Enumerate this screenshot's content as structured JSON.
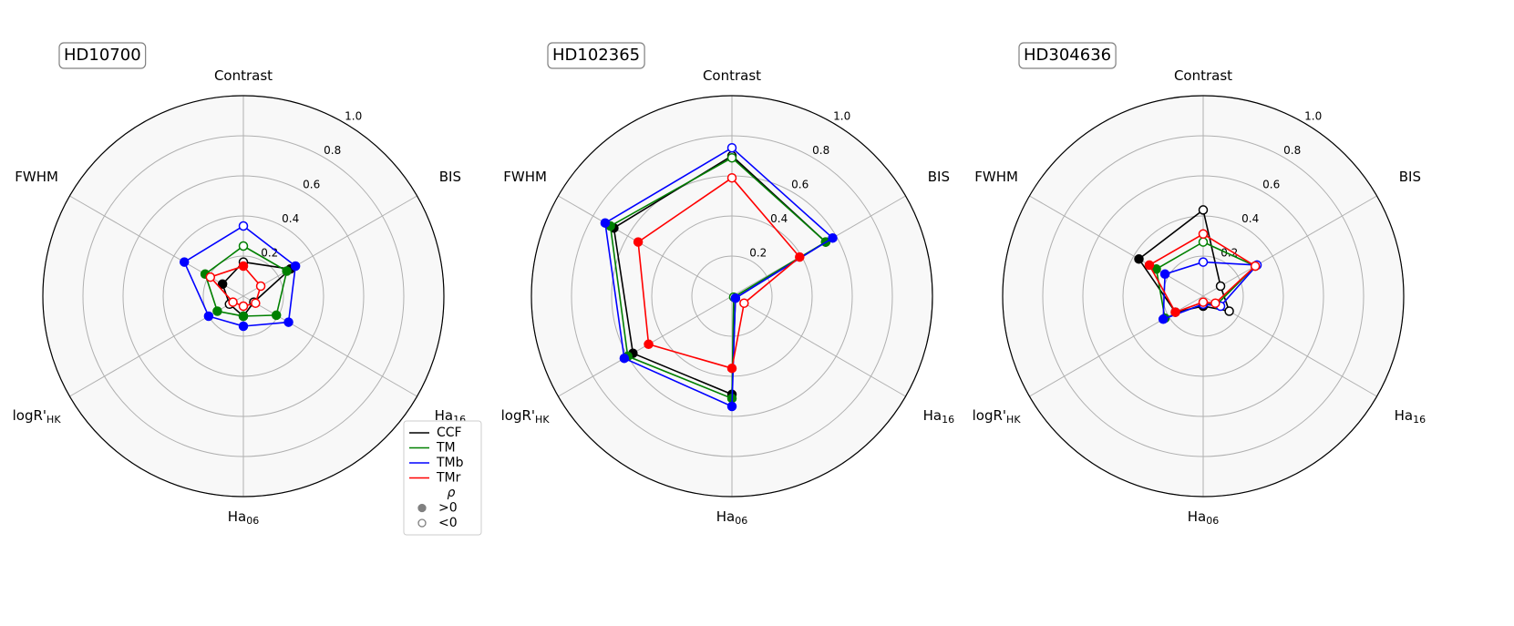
{
  "chart_data": [
    {
      "type": "radar",
      "title": "HD10700",
      "axes": [
        {
          "label": "Contrast"
        },
        {
          "label": "BIS"
        },
        {
          "label": "Ha",
          "sub": "16"
        },
        {
          "label": "Ha",
          "sub": "06"
        },
        {
          "label": "logR'",
          "sub": "HK"
        },
        {
          "label": "FWHM"
        }
      ],
      "rlim": [
        0,
        1.0
      ],
      "rticks": [
        0.2,
        0.4,
        0.6,
        0.8,
        {
          "value": 1.0,
          "label": "1.0"
        }
      ],
      "series": [
        {
          "name": "CCF",
          "color": "#000000",
          "values": [
            0.17,
            0.27,
            0.06,
            0.1,
            0.08,
            0.12
          ],
          "positive": [
            false,
            true,
            false,
            true,
            false,
            true
          ]
        },
        {
          "name": "TM",
          "color": "#008000",
          "values": [
            0.25,
            0.25,
            0.19,
            0.1,
            0.15,
            0.22
          ],
          "positive": [
            false,
            true,
            true,
            true,
            true,
            true
          ]
        },
        {
          "name": "TMb",
          "color": "#0000ff",
          "values": [
            0.35,
            0.3,
            0.26,
            0.15,
            0.2,
            0.34
          ],
          "positive": [
            false,
            true,
            true,
            true,
            true,
            true
          ]
        },
        {
          "name": "TMr",
          "color": "#ff0000",
          "values": [
            0.15,
            0.1,
            0.07,
            0.05,
            0.06,
            0.19
          ],
          "positive": [
            true,
            false,
            false,
            false,
            false,
            false
          ]
        }
      ],
      "legend_title": "ρ",
      "marker_labels": [
        ">0",
        "<0"
      ]
    },
    {
      "type": "radar",
      "title": "HD102365",
      "axes": [
        {
          "label": "Contrast"
        },
        {
          "label": "BIS"
        },
        {
          "label": "Ha",
          "sub": "16"
        },
        {
          "label": "Ha",
          "sub": "06"
        },
        {
          "label": "logR'",
          "sub": "HK"
        },
        {
          "label": "FWHM"
        }
      ],
      "rlim": [
        0,
        1.0
      ],
      "rticks": [
        0.2,
        0.4,
        0.6,
        0.8,
        {
          "value": 1.0,
          "label": "1.0"
        }
      ],
      "series": [
        {
          "color": "#000000",
          "values": [
            0.7,
            0.54,
            0.02,
            0.49,
            0.57,
            0.68
          ],
          "positive": [
            false,
            true,
            true,
            true,
            true,
            true
          ]
        },
        {
          "color": "#008000",
          "values": [
            0.69,
            0.54,
            0.01,
            0.51,
            0.6,
            0.7
          ],
          "positive": [
            false,
            true,
            false,
            true,
            true,
            true
          ]
        },
        {
          "color": "#0000ff",
          "values": [
            0.74,
            0.58,
            0.02,
            0.55,
            0.62,
            0.73
          ],
          "positive": [
            false,
            true,
            true,
            true,
            true,
            true
          ]
        },
        {
          "color": "#ff0000",
          "values": [
            0.59,
            0.39,
            0.07,
            0.36,
            0.48,
            0.54
          ],
          "positive": [
            false,
            true,
            false,
            true,
            true,
            true
          ]
        }
      ]
    },
    {
      "type": "radar",
      "title": "HD304636",
      "axes": [
        {
          "label": "Contrast"
        },
        {
          "label": "BIS"
        },
        {
          "label": "Ha",
          "sub": "16"
        },
        {
          "label": "Ha",
          "sub": "06"
        },
        {
          "label": "logR'",
          "sub": "HK"
        },
        {
          "label": "FWHM"
        }
      ],
      "rlim": [
        0,
        1.0
      ],
      "rticks": [
        0.2,
        0.4,
        0.6,
        0.8,
        {
          "value": 1.0,
          "label": "1.0"
        }
      ],
      "series": [
        {
          "color": "#000000",
          "values": [
            0.43,
            0.1,
            0.15,
            0.05,
            0.16,
            0.37
          ],
          "positive": [
            false,
            false,
            false,
            true,
            true,
            true
          ]
        },
        {
          "color": "#008000",
          "values": [
            0.27,
            0.3,
            0.08,
            0.04,
            0.22,
            0.27
          ],
          "positive": [
            false,
            false,
            false,
            true,
            true,
            true
          ]
        },
        {
          "color": "#0000ff",
          "values": [
            0.17,
            0.31,
            0.1,
            0.04,
            0.23,
            0.22
          ],
          "positive": [
            false,
            false,
            false,
            false,
            true,
            true
          ]
        },
        {
          "color": "#ff0000",
          "values": [
            0.31,
            0.3,
            0.07,
            0.03,
            0.16,
            0.31
          ],
          "positive": [
            false,
            false,
            false,
            false,
            true,
            true
          ]
        }
      ]
    }
  ]
}
